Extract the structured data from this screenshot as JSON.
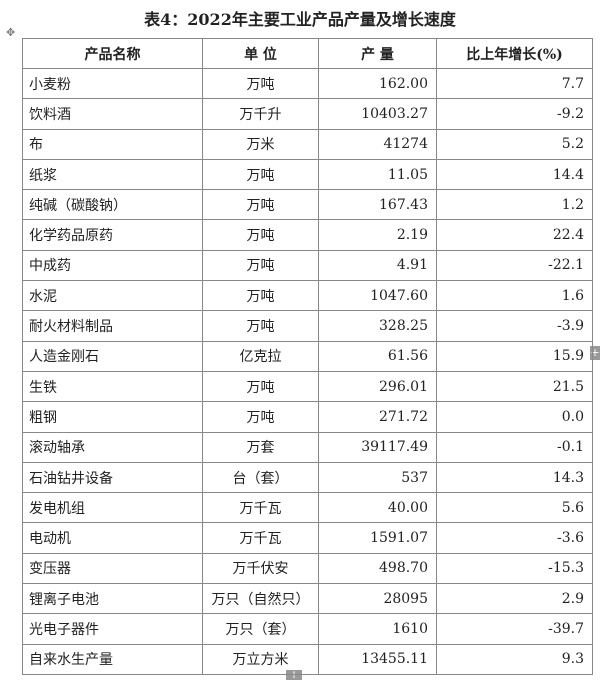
{
  "title": "表4：2022年主要工业产品产量及增长速度",
  "table": {
    "headers": [
      "产品名称",
      "单 位",
      "产 量",
      "比上年增长(%)"
    ],
    "rows": [
      [
        "小麦粉",
        "万吨",
        "162.00",
        "7.7"
      ],
      [
        "饮料酒",
        "万千升",
        "10403.27",
        "-9.2"
      ],
      [
        "布",
        "万米",
        "41274",
        "5.2"
      ],
      [
        "纸浆",
        "万吨",
        "11.05",
        "14.4"
      ],
      [
        "纯碱（碳酸钠）",
        "万吨",
        "167.43",
        "1.2"
      ],
      [
        "化学药品原药",
        "万吨",
        "2.19",
        "22.4"
      ],
      [
        "中成药",
        "万吨",
        "4.91",
        "-22.1"
      ],
      [
        "水泥",
        "万吨",
        "1047.60",
        "1.6"
      ],
      [
        "耐火材料制品",
        "万吨",
        "328.25",
        "-3.9"
      ],
      [
        "人造金刚石",
        "亿克拉",
        "61.56",
        "15.9"
      ],
      [
        "生铁",
        "万吨",
        "296.01",
        "21.5"
      ],
      [
        "粗钢",
        "万吨",
        "271.72",
        "0.0"
      ],
      [
        "滚动轴承",
        "万套",
        "39117.49",
        "-0.1"
      ],
      [
        "石油钻井设备",
        "台（套）",
        "537",
        "14.3"
      ],
      [
        "发电机组",
        "万千瓦",
        "40.00",
        "5.6"
      ],
      [
        "电动机",
        "万千瓦",
        "1591.07",
        "-3.6"
      ],
      [
        "变压器",
        "万千伏安",
        "498.70",
        "-15.3"
      ],
      [
        "锂离子电池",
        "万只（自然只）",
        "28095",
        "2.9"
      ],
      [
        "光电子器件",
        "万只（套）",
        "1610",
        "-39.7"
      ],
      [
        "自来水生产量",
        "万立方米",
        "13455.11",
        "9.3"
      ]
    ]
  }
}
